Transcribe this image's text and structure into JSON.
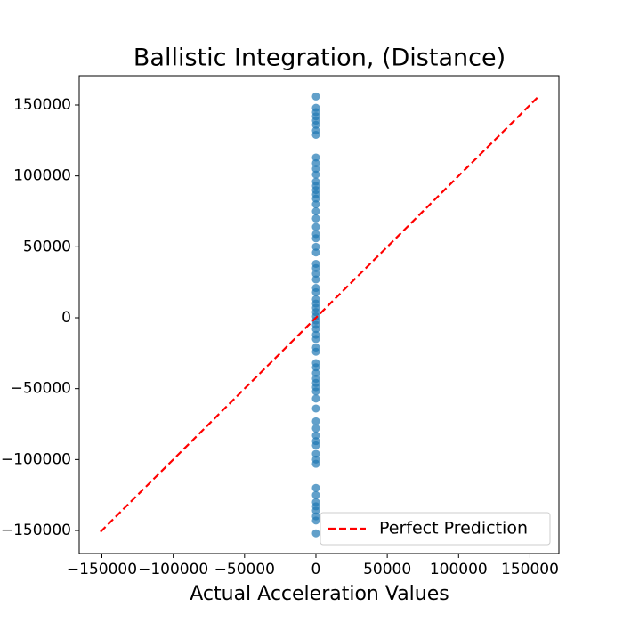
{
  "chart_data": {
    "type": "scatter",
    "title": "Ballistic Integration, (Distance)",
    "x_label": "Actual Acceleration Values",
    "xlim": [
      -165900,
      170300
    ],
    "ylim": [
      -166300,
      170700
    ],
    "xticks": [
      {
        "value": -150000,
        "label": "−150000"
      },
      {
        "value": -100000,
        "label": "−100000"
      },
      {
        "value": -50000,
        "label": "−50000"
      },
      0,
      50000,
      100000,
      150000
    ],
    "yticks": [
      {
        "value": -150000,
        "label": "−150000"
      },
      {
        "value": -100000,
        "label": "−100000"
      },
      {
        "value": -50000,
        "label": "−50000"
      },
      0,
      50000,
      100000,
      150000
    ],
    "points": {
      "color": "#1f77b4",
      "x": [
        0,
        0,
        0,
        0,
        0,
        0,
        0,
        0,
        0,
        0,
        0,
        0,
        0,
        0,
        0,
        0,
        0,
        0,
        0,
        0,
        0,
        0,
        0,
        0,
        0,
        0,
        0,
        0,
        0,
        0,
        0,
        0,
        0,
        0,
        0,
        0,
        0,
        0,
        0,
        0,
        0,
        0,
        0,
        0,
        0,
        0,
        0,
        0,
        0,
        0,
        0,
        0,
        0,
        0,
        0,
        0,
        0,
        0,
        0,
        0,
        0,
        0,
        0,
        0,
        0,
        0,
        0,
        0
      ],
      "y": [
        156000,
        148000,
        145000,
        142000,
        139000,
        136000,
        132000,
        129000,
        113000,
        109000,
        105000,
        101000,
        96000,
        93000,
        90000,
        87000,
        84000,
        80000,
        75000,
        70000,
        64000,
        59000,
        56000,
        50000,
        46000,
        38000,
        35000,
        31000,
        27000,
        21000,
        18000,
        13000,
        10000,
        7000,
        4000,
        1000,
        -2000,
        -5000,
        -8000,
        -12000,
        -15000,
        -21000,
        -24000,
        -32000,
        -35000,
        -39000,
        -43000,
        -46000,
        -49000,
        -52000,
        -57000,
        -64000,
        -73000,
        -78000,
        -83000,
        -87000,
        -90000,
        -96000,
        -100000,
        -103000,
        -120000,
        -125000,
        -130000,
        -133000,
        -136000,
        -140000,
        -143000,
        -152000
      ]
    },
    "line": {
      "name": "Perfect Prediction",
      "color": "#ff0000",
      "x": [
        -151000,
        156000
      ],
      "y": [
        -151000,
        156000
      ]
    },
    "legend": "lower right"
  }
}
